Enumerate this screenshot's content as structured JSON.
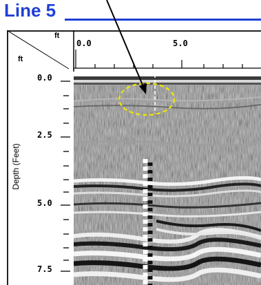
{
  "title": "Line 5",
  "corner": {
    "top_unit": "ft",
    "left_unit": "ft"
  },
  "x_axis": {
    "unit": "ft",
    "ticks": [
      "0.0",
      "5.0"
    ]
  },
  "y_axis": {
    "label": "Depth (Feet)",
    "unit": "ft",
    "ticks": [
      "0.0",
      "2.5",
      "5.0",
      "7.5"
    ]
  },
  "colors": {
    "title": "#1f3fd6",
    "highlight_ellipse": "#f2e600",
    "marker_line": "#ffffff",
    "arrow": "#000000"
  }
}
